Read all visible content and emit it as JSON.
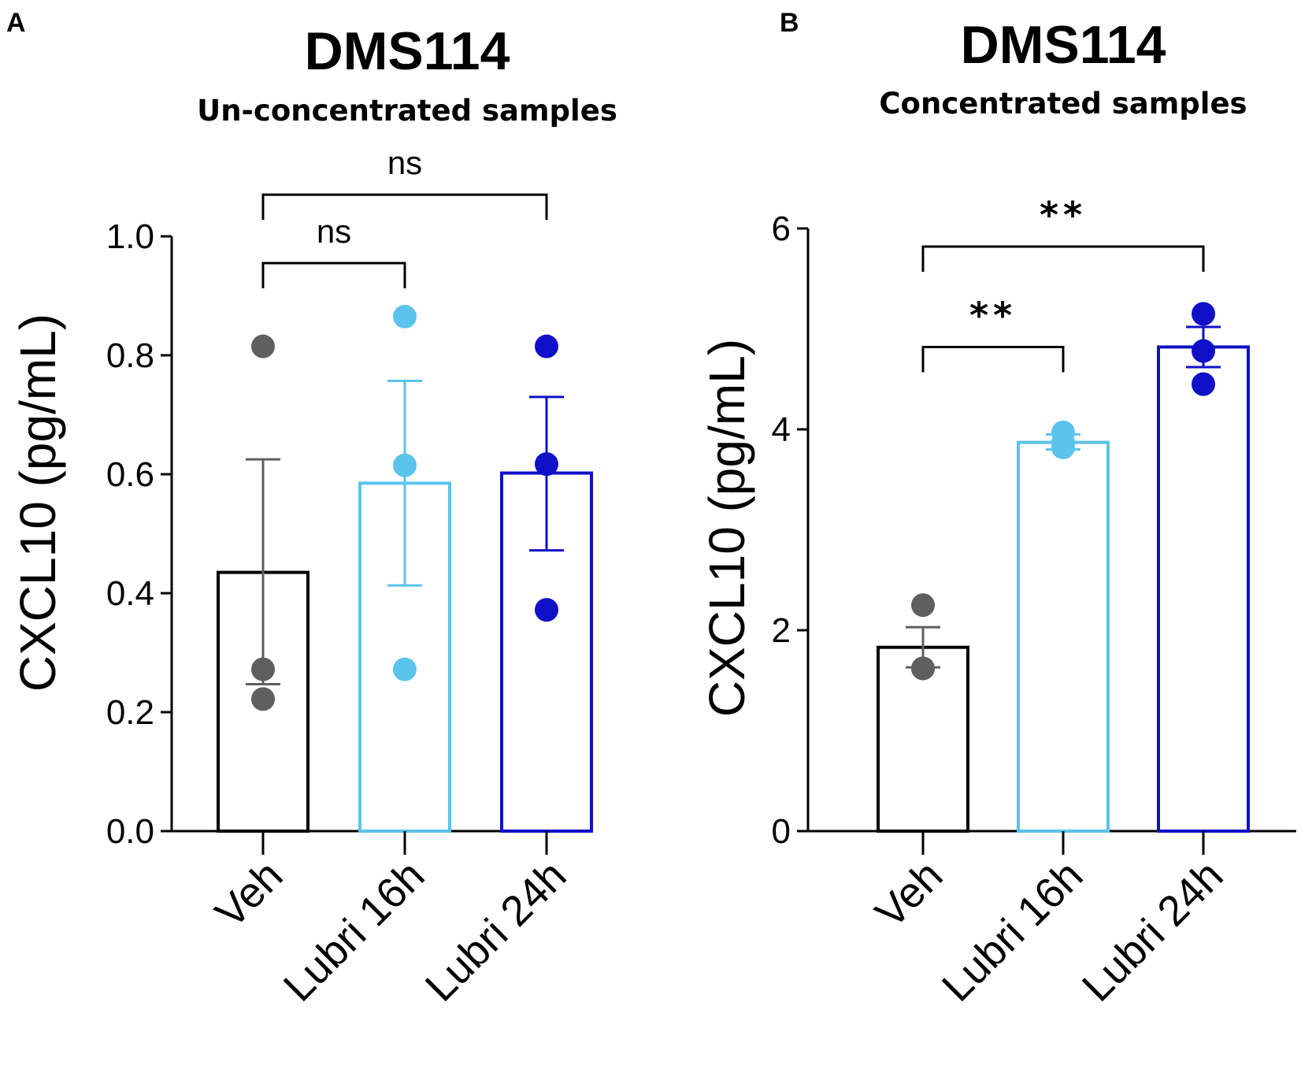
{
  "chart_data": [
    {
      "panel": "A",
      "type": "bar",
      "title": "DMS114",
      "subtitle": "Un-concentrated samples",
      "ylabel": "CXCL10 (pg/mL)",
      "ylim": [
        0,
        1.0
      ],
      "yticks": [
        "0.0",
        "0.2",
        "0.4",
        "0.6",
        "0.8",
        "1.0"
      ],
      "categories": [
        "Veh",
        "Lubri 16h",
        "Lubri 24h"
      ],
      "colors": [
        "#000000",
        "#5bc3ec",
        "#1010c8"
      ],
      "point_colors": [
        "#5f5f5f",
        "#5bc3ec",
        "#1010c8"
      ],
      "values": [
        0.435,
        0.585,
        0.602
      ],
      "sem_upper": [
        0.625,
        0.757,
        0.73
      ],
      "sem_lower": [
        0.247,
        0.413,
        0.472
      ],
      "points": [
        [
          0.815,
          0.272,
          0.222
        ],
        [
          0.865,
          0.615,
          0.272
        ],
        [
          0.815,
          0.617,
          0.372
        ]
      ],
      "comparisons": [
        {
          "from": 0,
          "to": 1,
          "label": "ns",
          "y": 0.955
        },
        {
          "from": 0,
          "to": 2,
          "label": "ns",
          "y": 1.07
        }
      ]
    },
    {
      "panel": "B",
      "type": "bar",
      "title": "DMS114",
      "subtitle": "Concentrated samples",
      "ylabel": "CXCL10 (pg/mL)",
      "ylim": [
        0,
        6
      ],
      "yticks": [
        "0",
        "2",
        "4",
        "6"
      ],
      "categories": [
        "Veh",
        "Lubri 16h",
        "Lubri 24h"
      ],
      "colors": [
        "#000000",
        "#5bc3ec",
        "#1010c8"
      ],
      "point_colors": [
        "#5f5f5f",
        "#5bc3ec",
        "#1010c8"
      ],
      "values": [
        1.83,
        3.87,
        4.82
      ],
      "sem_upper": [
        2.03,
        3.95,
        5.02
      ],
      "sem_lower": [
        1.63,
        3.8,
        4.62
      ],
      "points": [
        [
          2.25,
          1.62,
          1.62
        ],
        [
          3.97,
          3.82,
          3.87
        ],
        [
          5.15,
          4.78,
          4.45
        ]
      ],
      "comparisons": [
        {
          "from": 0,
          "to": 1,
          "label": "**",
          "y": 4.82
        },
        {
          "from": 0,
          "to": 2,
          "label": "**",
          "y": 5.82
        }
      ]
    }
  ]
}
